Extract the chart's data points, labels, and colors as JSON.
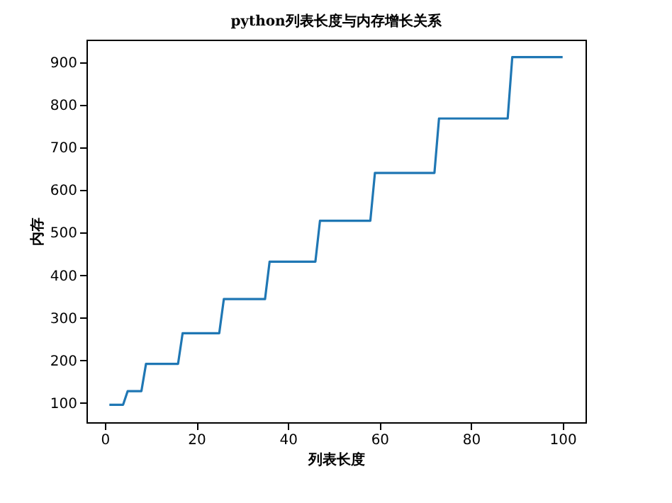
{
  "chart_data": {
    "type": "line",
    "title": "python列表长度与内存增长关系",
    "xlabel": "列表长度",
    "ylabel": "内存",
    "x": [
      1,
      4,
      5,
      8,
      9,
      16,
      17,
      25,
      26,
      35,
      36,
      46,
      47,
      58,
      59,
      72,
      73,
      88,
      89,
      100
    ],
    "series": [
      {
        "color": "#1f77b4",
        "values": [
          96,
          96,
          128,
          128,
          192,
          192,
          264,
          264,
          344,
          344,
          432,
          432,
          528,
          528,
          640,
          640,
          768,
          768,
          912,
          912
        ]
      }
    ],
    "xlim": [
      -4,
      105
    ],
    "xticks": [
      0,
      20,
      40,
      60,
      80,
      100
    ],
    "ylim": [
      55,
      953
    ],
    "yticks": [
      100,
      200,
      300,
      400,
      500,
      600,
      700,
      800,
      900
    ],
    "grid": false,
    "legend": false,
    "marker": "none",
    "line_style": "solid"
  }
}
